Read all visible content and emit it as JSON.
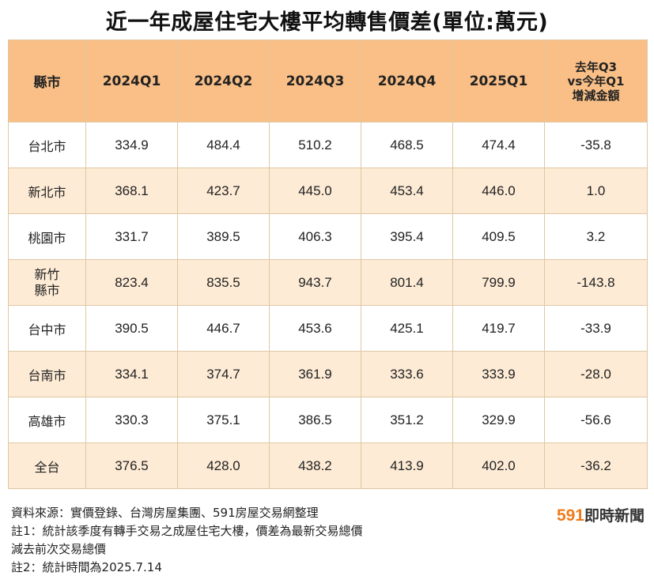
{
  "title": "近一年成屋住宅大樓平均轉售價差(單位:萬元)",
  "table": {
    "headers": [
      "縣市",
      "2024Q1",
      "2024Q2",
      "2024Q3",
      "2024Q4",
      "2025Q1"
    ],
    "change_header": [
      "去年Q3",
      "vs今年Q1",
      "增減金額"
    ],
    "rows": [
      {
        "city": [
          "台北市"
        ],
        "values": [
          "334.9",
          "484.4",
          "510.2",
          "468.5",
          "474.4",
          "-35.8"
        ]
      },
      {
        "city": [
          "新北市"
        ],
        "values": [
          "368.1",
          "423.7",
          "445.0",
          "453.4",
          "446.0",
          "1.0"
        ]
      },
      {
        "city": [
          "桃園市"
        ],
        "values": [
          "331.7",
          "389.5",
          "406.3",
          "395.4",
          "409.5",
          "3.2"
        ]
      },
      {
        "city": [
          "新竹",
          "縣市"
        ],
        "values": [
          "823.4",
          "835.5",
          "943.7",
          "801.4",
          "799.9",
          "-143.8"
        ]
      },
      {
        "city": [
          "台中市"
        ],
        "values": [
          "390.5",
          "446.7",
          "453.6",
          "425.1",
          "419.7",
          "-33.9"
        ]
      },
      {
        "city": [
          "台南市"
        ],
        "values": [
          "334.1",
          "374.7",
          "361.9",
          "333.6",
          "333.9",
          "-28.0"
        ]
      },
      {
        "city": [
          "高雄市"
        ],
        "values": [
          "330.3",
          "375.1",
          "386.5",
          "351.2",
          "329.9",
          "-56.6"
        ]
      },
      {
        "city": [
          "全台"
        ],
        "values": [
          "376.5",
          "428.0",
          "438.2",
          "413.9",
          "402.0",
          "-36.2"
        ]
      }
    ]
  },
  "notes": {
    "source": "資料來源：實價登錄、台灣房屋集團、591房屋交易網整理",
    "note1_line1": "註1：統計該季度有轉手交易之成屋住宅大樓，價差為最新交易總價",
    "note1_line2": "減去前次交易總價",
    "note2": "註2：統計時間為2025.7.14"
  },
  "brand": {
    "number": "591",
    "text": "即時新聞",
    "accent_color": "#f07a1a"
  },
  "colors": {
    "header_bg": "#f9bf86",
    "stripe_bg": "#fdebd5",
    "border": "#e0c7a3"
  }
}
